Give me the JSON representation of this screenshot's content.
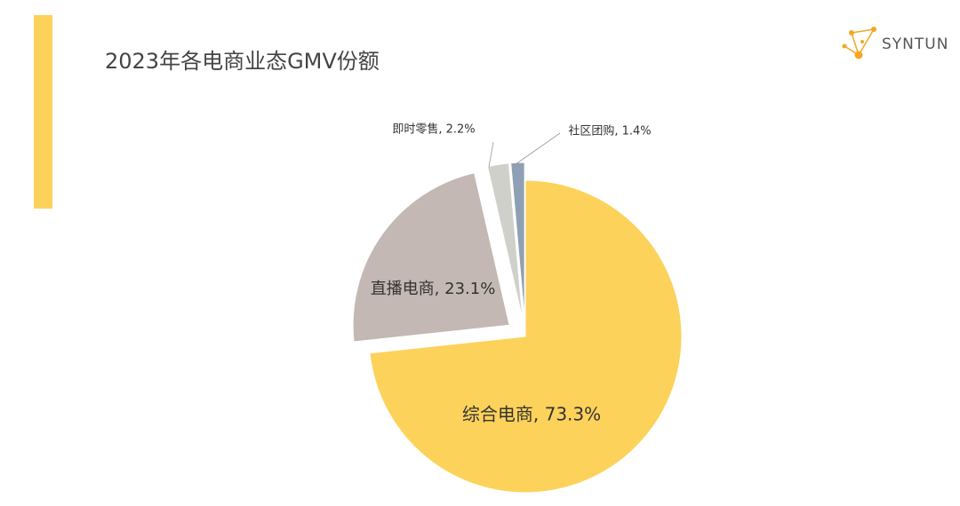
{
  "logo": "SYNTUN",
  "chart_data": {
    "type": "pie",
    "title": "2023年各电商业态GMV份额",
    "values": [
      73.3,
      23.1,
      2.2,
      1.4
    ],
    "value_labels": [
      "综合电商, 73.3%",
      "直播电商, 23.1%",
      "即时零售, 2.2%",
      "社区团购, 1.4%"
    ],
    "colors": [
      "#fdd25b",
      "#c3b8b3",
      "#d0d0cb",
      "#8fa0b4"
    ]
  }
}
